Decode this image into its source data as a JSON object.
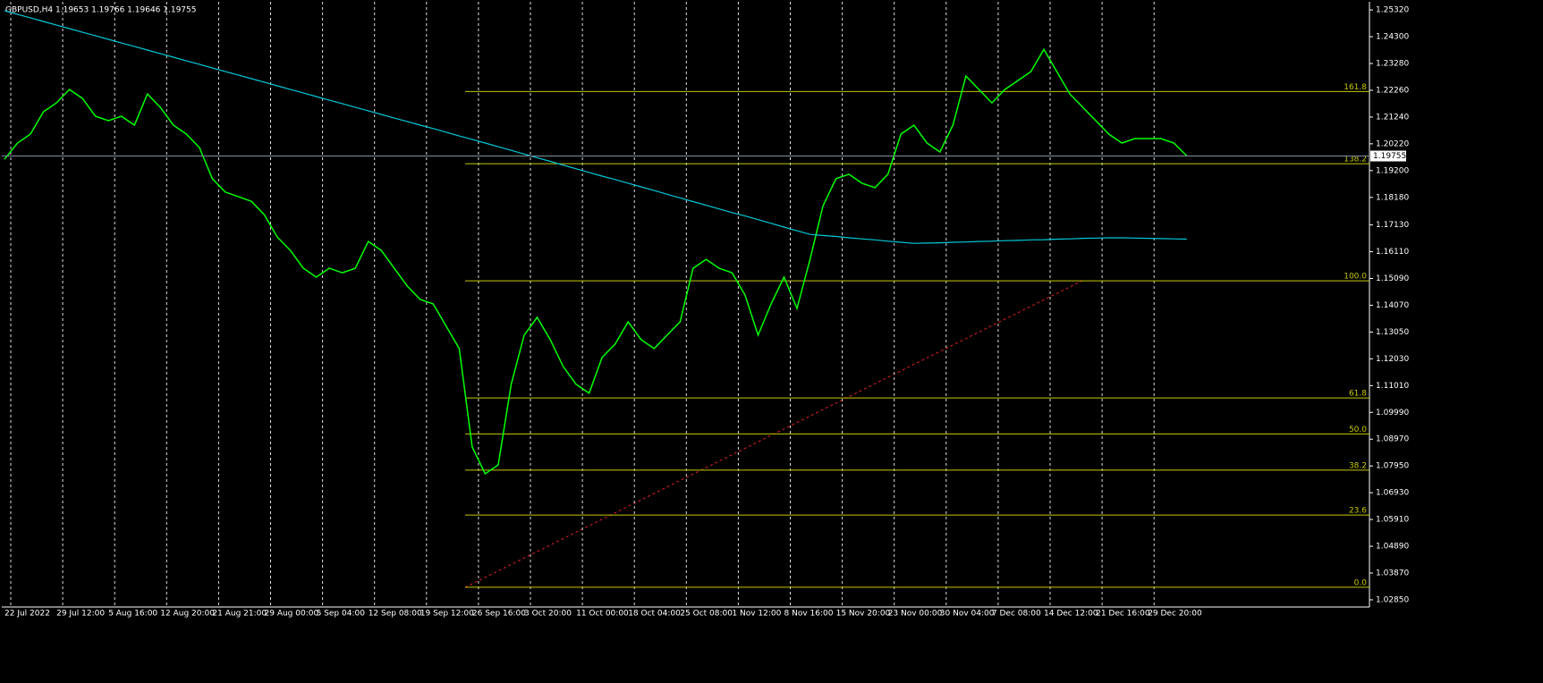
{
  "chart_data": {
    "type": "line",
    "title": "GBPUSD,H4  1.19653 1.19766 1.19646 1.19755",
    "categories": [
      "22 Jul 2022",
      null,
      null,
      null,
      "29 Jul 12:00",
      null,
      null,
      null,
      "5 Aug 16:00",
      null,
      null,
      null,
      "12 Aug 20:00",
      null,
      null,
      null,
      "21 Aug 21:00",
      null,
      null,
      null,
      "29 Aug 00:00",
      null,
      null,
      null,
      "5 Sep 04:00",
      null,
      null,
      null,
      "12 Sep 08:00",
      null,
      null,
      null,
      "19 Sep 12:00",
      null,
      null,
      null,
      "26 Sep 16:00",
      null,
      null,
      null,
      "3 Oct 20:00",
      null,
      null,
      null,
      "11 Oct 00:00",
      null,
      null,
      null,
      "18 Oct 04:00",
      null,
      null,
      null,
      "25 Oct 08:00",
      null,
      null,
      null,
      "1 Nov 12:00",
      null,
      null,
      null,
      "8 Nov 16:00",
      null,
      null,
      null,
      "15 Nov 20:00",
      null,
      null,
      null,
      "23 Nov 00:00",
      null,
      null,
      null,
      "30 Nov 04:00",
      null,
      null,
      null,
      "7 Dec 08:00",
      null,
      null,
      null,
      "14 Dec 12:00",
      null,
      null,
      null,
      "21 Dec 16:00",
      null,
      null,
      null,
      "29 Dec 20:00",
      null,
      null,
      null
    ],
    "series": [
      {
        "color": "#00ff00",
        "values": [
          1.1963,
          1.2025,
          1.2059,
          1.2144,
          1.2178,
          1.2229,
          1.2195,
          1.2127,
          1.211,
          1.2127,
          1.2093,
          1.2212,
          1.2161,
          1.2093,
          1.2059,
          1.2008,
          1.1889,
          1.1838,
          1.1821,
          1.1803,
          1.1752,
          1.1667,
          1.1616,
          1.1548,
          1.1514,
          1.1548,
          1.1531,
          1.1548,
          1.165,
          1.1616,
          1.1548,
          1.148,
          1.1429,
          1.1412,
          1.1327,
          1.1242,
          1.0867,
          1.0765,
          1.0799,
          1.1106,
          1.1293,
          1.1361,
          1.1276,
          1.1174,
          1.1106,
          1.1072,
          1.1208,
          1.1259,
          1.1344,
          1.1276,
          1.1242,
          1.1293,
          1.1344,
          1.1548,
          1.1582,
          1.1548,
          1.1531,
          1.1446,
          1.1293,
          1.1412,
          1.1514,
          1.1395,
          1.1582,
          1.1786,
          1.1889,
          1.1906,
          1.1872,
          1.1855,
          1.1906,
          1.2059,
          1.2093,
          1.2025,
          1.1991,
          1.2093,
          1.228,
          1.2229,
          1.2178,
          1.2229,
          1.2263,
          1.2297,
          1.2382,
          1.2297,
          1.2212,
          1.2161,
          1.211,
          1.2059,
          1.2025,
          1.2042,
          1.2042,
          1.2042,
          1.2025,
          1.1976
        ]
      },
      {
        "color": "#00c8d8",
        "values": [
          1.2529,
          1.2515,
          1.2502,
          1.2488,
          1.2474,
          1.2461,
          1.2447,
          1.2434,
          1.242,
          1.2406,
          1.2393,
          1.2379,
          1.2366,
          1.2352,
          1.2338,
          1.2325,
          1.2311,
          1.2297,
          1.2284,
          1.227,
          1.2257,
          1.2243,
          1.2229,
          1.2216,
          1.2202,
          1.2188,
          1.2175,
          1.2161,
          1.2148,
          1.2134,
          1.212,
          1.2107,
          1.2093,
          1.208,
          1.2066,
          1.2052,
          1.2039,
          1.2025,
          1.2011,
          1.1997,
          1.1983,
          1.1969,
          1.1955,
          1.1941,
          1.1927,
          1.1913,
          1.1899,
          1.1886,
          1.1872,
          1.1858,
          1.1844,
          1.183,
          1.1816,
          1.1802,
          1.1788,
          1.1774,
          1.176,
          1.1747,
          1.1733,
          1.1719,
          1.1705,
          1.1691,
          1.1677,
          1.1673,
          1.1669,
          1.1664,
          1.166,
          1.1656,
          1.1651,
          1.1647,
          1.1643,
          1.1644,
          1.1645,
          1.1647,
          1.1648,
          1.165,
          1.1651,
          1.1653,
          1.1654,
          1.1656,
          1.1657,
          1.1659,
          1.166,
          1.1662,
          1.1663,
          1.1664,
          1.1664,
          1.1663,
          1.1662,
          1.1661,
          1.166,
          1.1659
        ]
      }
    ],
    "fib_levels": [
      {
        "label": "161.8",
        "price": 1.2221
      },
      {
        "label": "138.2",
        "price": 1.1946
      },
      {
        "label": "100.0",
        "price": 1.15
      },
      {
        "label": "61.8",
        "price": 1.1054
      },
      {
        "label": "50.0",
        "price": 1.0917
      },
      {
        "label": "38.2",
        "price": 1.0779
      },
      {
        "label": "23.6",
        "price": 1.0608
      },
      {
        "label": "0.0",
        "price": 1.0333
      }
    ],
    "current_price": {
      "value": 1.19755,
      "label": "1.19755"
    },
    "ylim": [
      1.0261,
      1.2563
    ],
    "yticks": [
      {
        "value": 1.2532,
        "label": "1.25320"
      },
      {
        "value": 1.243,
        "label": "1.24300"
      },
      {
        "value": 1.2328,
        "label": "1.23280"
      },
      {
        "value": 1.2226,
        "label": "1.22260"
      },
      {
        "value": 1.2124,
        "label": "1.21240"
      },
      {
        "value": 1.2022,
        "label": "1.20220"
      },
      {
        "value": 1.192,
        "label": "1.19200"
      },
      {
        "value": 1.1818,
        "label": "1.18180"
      },
      {
        "value": 1.1713,
        "label": "1.17130"
      },
      {
        "value": 1.1611,
        "label": "1.16110"
      },
      {
        "value": 1.1509,
        "label": "1.15090"
      },
      {
        "value": 1.1407,
        "label": "1.14070"
      },
      {
        "value": 1.1305,
        "label": "1.13050"
      },
      {
        "value": 1.1203,
        "label": "1.12030"
      },
      {
        "value": 1.1101,
        "label": "1.11010"
      },
      {
        "value": 1.0999,
        "label": "1.09990"
      },
      {
        "value": 1.0897,
        "label": "1.08970"
      },
      {
        "value": 1.0795,
        "label": "1.07950"
      },
      {
        "value": 1.0693,
        "label": "1.06930"
      },
      {
        "value": 1.0591,
        "label": "1.05910"
      },
      {
        "value": 1.0489,
        "label": "1.04890"
      },
      {
        "value": 1.0387,
        "label": "1.03870"
      },
      {
        "value": 1.0285,
        "label": "1.02850"
      }
    ],
    "grid": true
  }
}
